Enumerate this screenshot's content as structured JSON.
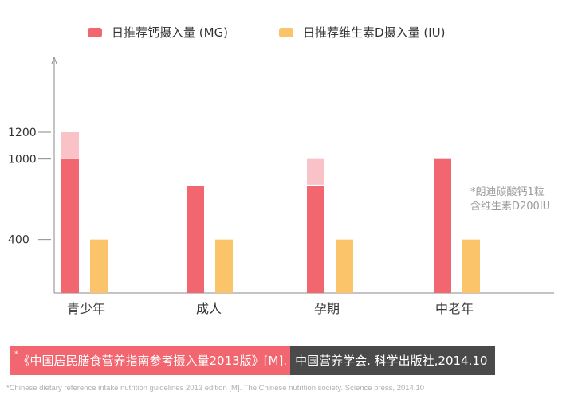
{
  "legend": {
    "calcium_label": "日推荐钙摄入量 (MG)",
    "vitd_label": "日推荐维生素D摄入量 (IU)"
  },
  "note": {
    "line1": "*朗迪碳酸钙1粒",
    "line2": "含维生素D200IU"
  },
  "reference": {
    "mark": "*",
    "left_text": "《中国居民膳食营养指南参考摄入量2013版》[M].",
    "right_text": "中国营养学会. 科学出版社,2014.10"
  },
  "footnote": "*Chinese dietary reference intake nutrition guidelines 2013 edition [M]. The Chinese nutrition society. Science press, 2014.10",
  "colors": {
    "calcium": "#f26670",
    "calcium_light": "#f9c2c6",
    "vitd": "#fcc46a",
    "axis": "#888888"
  },
  "chart_data": {
    "type": "bar",
    "categories": [
      "青少年",
      "成人",
      "孕期",
      "中老年"
    ],
    "yticks": [
      400,
      1000,
      1200
    ],
    "ylim": [
      0,
      1400
    ],
    "series": [
      {
        "name": "日推荐钙摄入量 (MG)",
        "values": [
          1000,
          800,
          800,
          1000
        ],
        "upper": [
          1200,
          null,
          1000,
          null
        ]
      },
      {
        "name": "日推荐维生素D摄入量 (IU)",
        "values": [
          400,
          400,
          400,
          400
        ]
      }
    ]
  }
}
